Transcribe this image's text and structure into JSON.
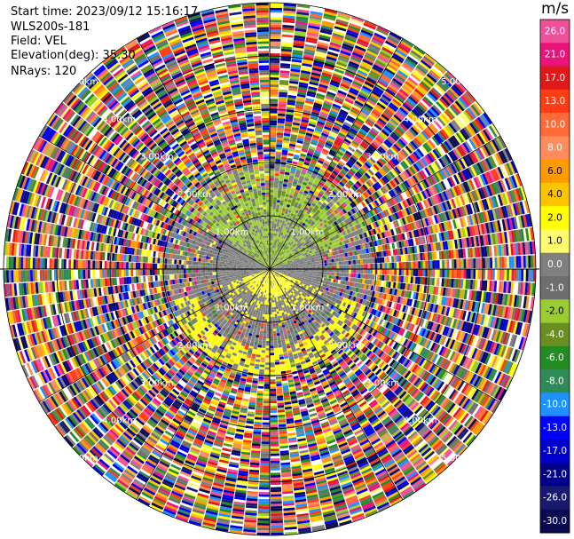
{
  "header": {
    "start_time": "Start time: 2023/09/12 15:16:17",
    "instrument": "WLS200s-181",
    "field": "Field: VEL",
    "elevation": "Elevation(deg): 35.30",
    "nrays": "NRays: 120"
  },
  "colorbar": {
    "unit": "m/s",
    "ticks": [
      "26.0",
      "21.0",
      "17.0",
      "13.0",
      "10.0",
      "8.0",
      "6.0",
      "4.0",
      "2.0",
      "1.0",
      "0.0",
      "-1.0",
      "-2.0",
      "-4.0",
      "-6.0",
      "-8.0",
      "-10.0",
      "-13.0",
      "-17.0",
      "-21.0",
      "-26.0",
      "-30.0"
    ],
    "colors": [
      "#f0509a",
      "#e8147a",
      "#e01818",
      "#ff3c14",
      "#ff6a3a",
      "#ff8c5a",
      "#ff9a00",
      "#ffc400",
      "#ffff00",
      "#fffb6e",
      "#808080",
      "#6e6e6e",
      "#9acd32",
      "#6b8e23",
      "#228b22",
      "#2e8b57",
      "#1e90ff",
      "#0000ff",
      "#0000cd",
      "#00008b",
      "#191970",
      "#0a0a50"
    ]
  },
  "chart_data": {
    "type": "heatmap",
    "projection": "polar PPI",
    "field": "VEL",
    "units": "m/s",
    "vmin": -30.0,
    "vmax": 26.0,
    "nrays": 120,
    "range_ring_labels": [
      "1.00km",
      "2.00km",
      "3.00km",
      "4.00km",
      "5.00km"
    ],
    "range_rings_km": [
      1,
      2,
      3,
      4,
      5
    ],
    "max_range_km": 5.0,
    "regions": [
      {
        "from_km": 0.0,
        "to_km": 1.0,
        "pattern": "mostly 0.0 (gray) with light-green sector north and yellow sector south"
      },
      {
        "from_km": 1.0,
        "to_km": 2.0,
        "pattern": "gray ring, yellow-green crescent to north, yellow crescent to south"
      },
      {
        "from_km": 2.0,
        "to_km": 5.0,
        "pattern": "noisy multicolor gates across full scale"
      }
    ]
  }
}
